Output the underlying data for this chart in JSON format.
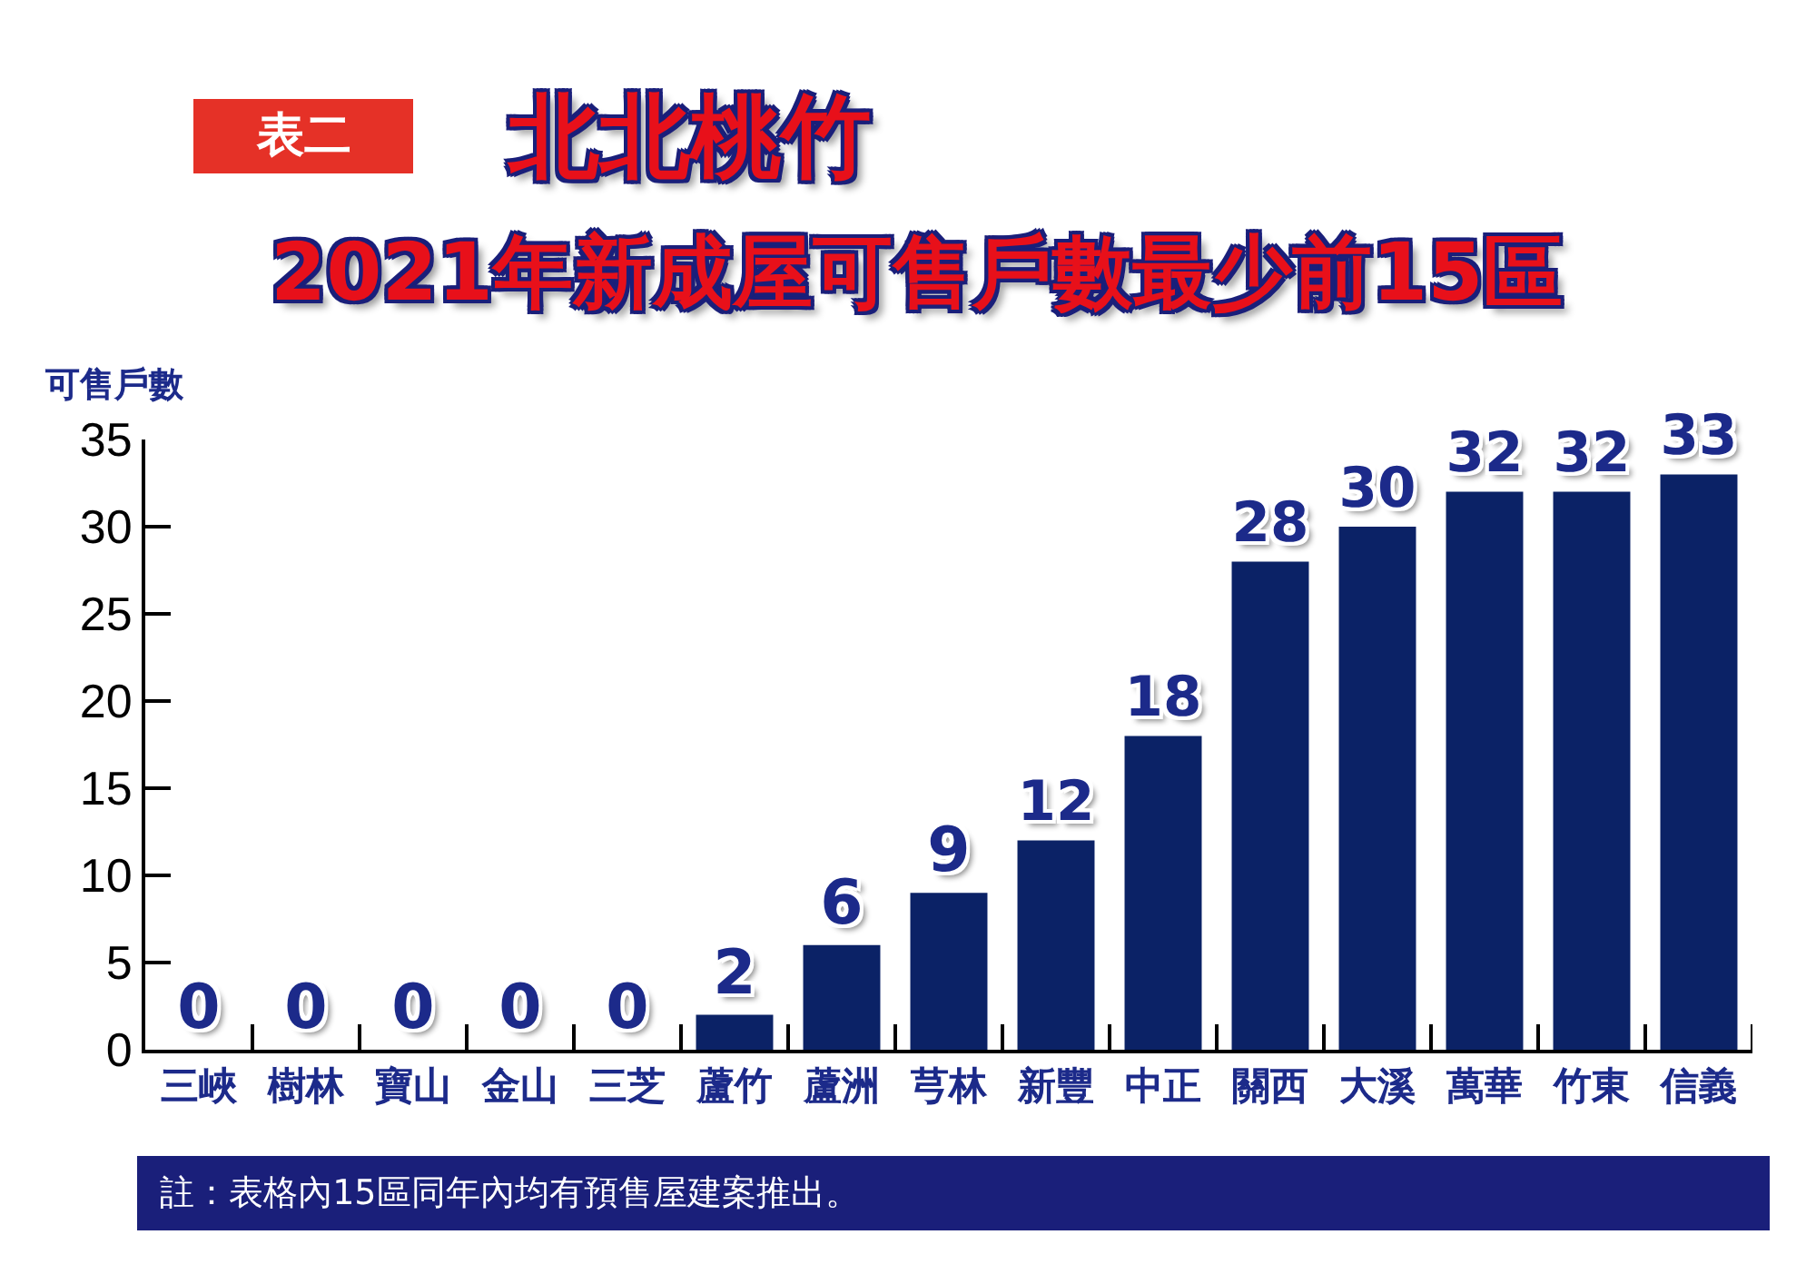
{
  "chart_data": {
    "type": "bar",
    "title": "北北桃竹",
    "subtitle": "2021年新成屋可售戶數最少前15區",
    "ylabel": "可售戶數",
    "annotations": [
      "表二",
      "註：表格內15區同年內均有預售屋建案推出。"
    ],
    "categories": [
      "三峽",
      "樹林",
      "寶山",
      "金山",
      "三芝",
      "蘆竹",
      "蘆洲",
      "芎林",
      "新豐",
      "中正",
      "關西",
      "大溪",
      "萬華",
      "竹東",
      "信義"
    ],
    "values": [
      0,
      0,
      0,
      0,
      0,
      2,
      6,
      9,
      12,
      18,
      28,
      30,
      32,
      32,
      33
    ],
    "color": "#0b2266",
    "data_labels": true,
    "ylim": [
      0,
      35
    ],
    "yticks": [
      0,
      5,
      10,
      15,
      20,
      25,
      30,
      35
    ]
  }
}
